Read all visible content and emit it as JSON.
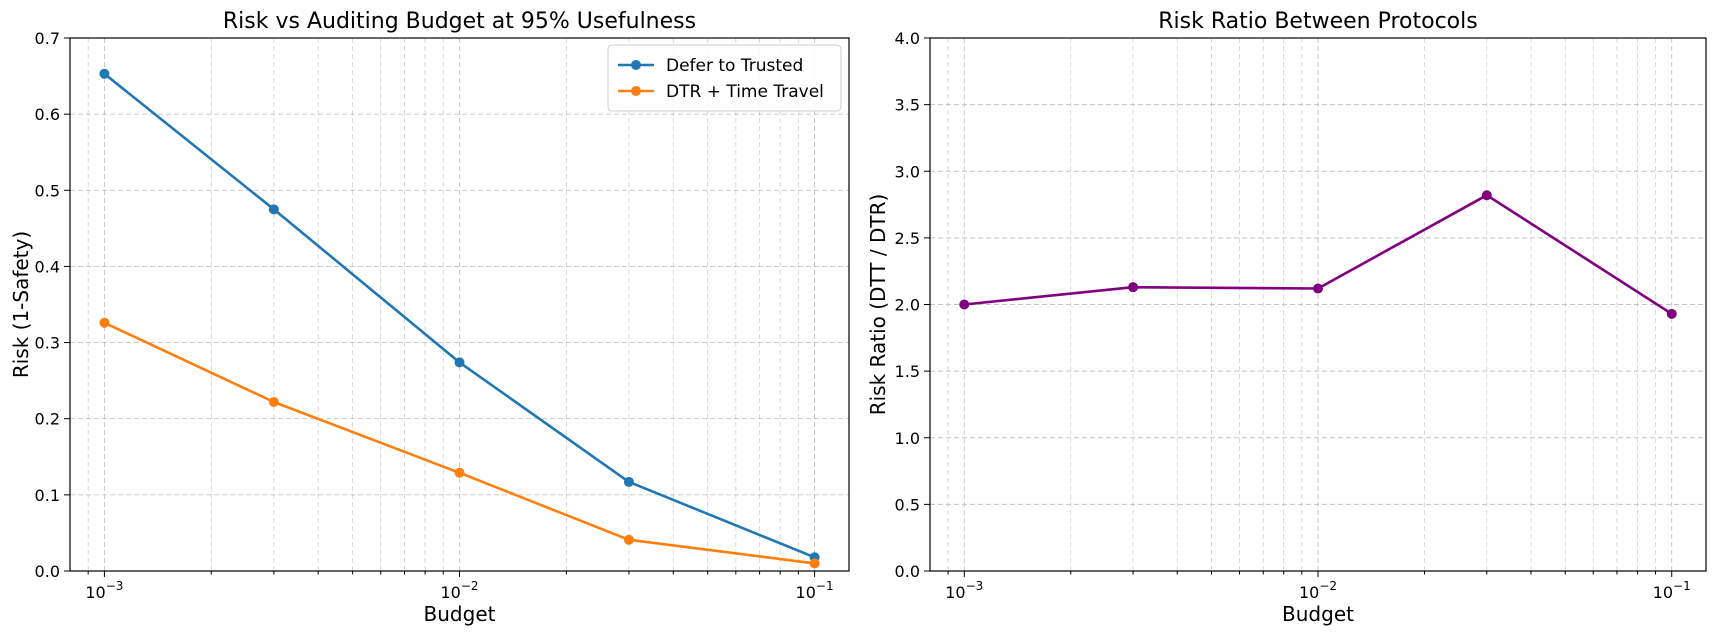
{
  "chart_data": [
    {
      "type": "line",
      "title": "Risk vs Auditing Budget at 95% Usefulness",
      "xlabel": "Budget",
      "ylabel": "Risk (1-Safety)",
      "xscale": "log",
      "xlim": [
        0.0008,
        0.125
      ],
      "ylim": [
        0,
        0.7
      ],
      "yticks": [
        0.0,
        0.1,
        0.2,
        0.3,
        0.4,
        0.5,
        0.6,
        0.7
      ],
      "ytick_labels": [
        "0.0",
        "0.1",
        "0.2",
        "0.3",
        "0.4",
        "0.5",
        "0.6",
        "0.7"
      ],
      "grid": true,
      "legend_position": "top-right",
      "x": [
        0.001,
        0.003,
        0.01,
        0.03,
        0.1
      ],
      "series": [
        {
          "name": "Defer to Trusted",
          "color": "#1f77b4",
          "values": [
            0.653,
            0.475,
            0.274,
            0.117,
            0.018
          ]
        },
        {
          "name": "DTR + Time Travel",
          "color": "#ff7f0e",
          "values": [
            0.326,
            0.222,
            0.129,
            0.041,
            0.01
          ]
        }
      ]
    },
    {
      "type": "line",
      "title": "Risk Ratio Between Protocols",
      "xlabel": "Budget",
      "ylabel": "Risk Ratio (DTT / DTR)",
      "xscale": "log",
      "xlim": [
        0.0008,
        0.125
      ],
      "ylim": [
        0,
        4.0
      ],
      "yticks": [
        0.0,
        0.5,
        1.0,
        1.5,
        2.0,
        2.5,
        3.0,
        3.5,
        4.0
      ],
      "ytick_labels": [
        "0.0",
        "0.5",
        "1.0",
        "1.5",
        "2.0",
        "2.5",
        "3.0",
        "3.5",
        "4.0"
      ],
      "grid": true,
      "x": [
        0.001,
        0.003,
        0.01,
        0.03,
        0.1
      ],
      "series": [
        {
          "color": "#800080",
          "values": [
            2.0,
            2.13,
            2.12,
            2.82,
            1.93
          ]
        }
      ]
    }
  ]
}
